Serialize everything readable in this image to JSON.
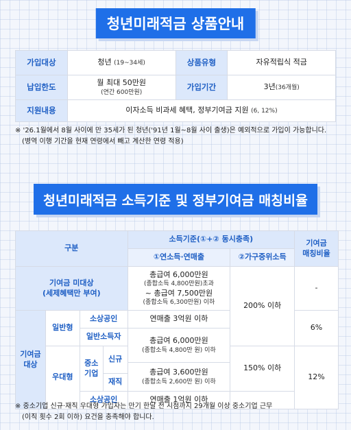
{
  "section1": {
    "title": "청년미래적금 상품안내",
    "rows": [
      {
        "label1": "가입대상",
        "value1": "청년",
        "value1_small": "(19~34세)",
        "label2": "상품유형",
        "value2": "자유적립식 적금"
      },
      {
        "label1": "납입한도",
        "value1": "월 최대 50만원",
        "value1_small": "(연간 600만원)",
        "label2": "가입기간",
        "value2": "3년",
        "value2_small": "(36개월)"
      },
      {
        "label1": "지원내용",
        "value1": "이자소득 비과세 혜택, 정부기여금 지원",
        "value1_small": "(6, 12%)"
      }
    ],
    "note_line1": "※ '26.1월에서 8월 사이에 만 35세가 된 청년('91년 1월~8월 사이 출생)은 예외적으로 가입이 가능합니다.",
    "note_line2": "(병역 이행 기간을 현재 연령에서 빼고 계산한 연령 적용)"
  },
  "section2": {
    "title": "청년미래적금 소득기준 및 정부기여금 매칭비율",
    "header": {
      "gubun": "구분",
      "income_std": "소득기준(①+② 동시충족)",
      "col1": "①연소득·연매출",
      "col2": "②가구중위소득",
      "rate_line1": "기여금",
      "rate_line2": "매칭비율"
    },
    "nonelig": {
      "label_line1": "기여금 미대상",
      "label_line2": "(세제혜택만 부여)",
      "l1": "총급여 6,000만원",
      "l2": "(종합소득 4,800만원)초과",
      "l3": "~ 총급여 7,500만원",
      "l4": "(종합소득 6,300만원) 이하",
      "rate": "-"
    },
    "target_label_line1": "기여금",
    "target_label_line2": "대상",
    "general": "일반형",
    "preferential": "우대형",
    "rows": {
      "small_biz": {
        "label": "소상공인",
        "income": "연매출 3억원 이하"
      },
      "general_income": {
        "label": "일반소득자",
        "income": "총급여 6,000만원",
        "income_small": "(종합소득 4,800만 원) 이하"
      },
      "sme_label_line1": "중소",
      "sme_label_line2": "기업",
      "sme_new": "신규",
      "sme_current": "재직",
      "sme_income": "총급여 3,600만원",
      "sme_income_small": "(종합소득 2,600만 원) 이하",
      "pref_small_biz": {
        "label": "소상공인",
        "income": "연매출 1억원 이하"
      }
    },
    "household_general": "200% 이하",
    "household_pref": "150% 이하",
    "rate_general": "6%",
    "rate_pref": "12%",
    "note_line1": "※ 중소기업 신규·재직 우대형 가입자는 만기 한달 전 시점까지 29개월 이상 중소기업 근무",
    "note_line2": "(이직 횟수 2회 이하) 요건을 충족해야 합니다."
  }
}
